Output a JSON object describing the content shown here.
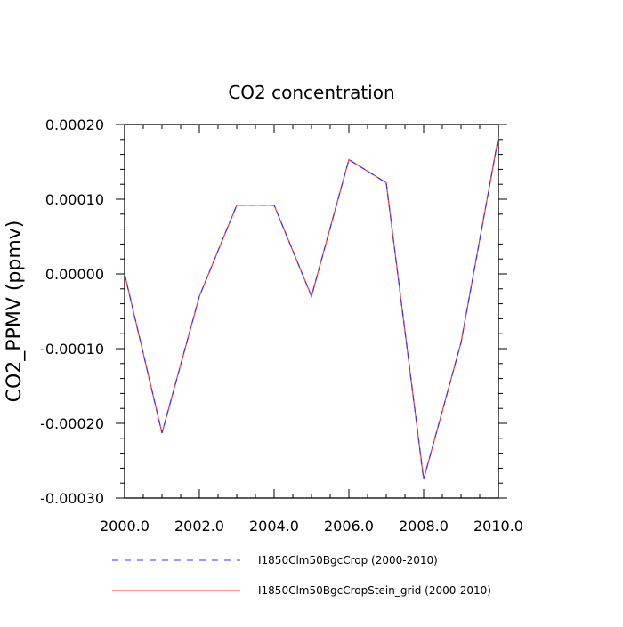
{
  "chart_data": {
    "type": "line",
    "title": "CO2 concentration",
    "xlabel": "",
    "ylabel": "CO2_PPMV  (ppmv)",
    "xlim": [
      2000,
      2010
    ],
    "ylim": [
      -0.0003,
      0.0002
    ],
    "x": [
      2000,
      2001,
      2002,
      2003,
      2004,
      2005,
      2006,
      2007,
      2008,
      2009,
      2010
    ],
    "x_ticks": [
      2000,
      2002,
      2004,
      2006,
      2008,
      2010
    ],
    "x_tick_labels": [
      "2000.0",
      "2002.0",
      "2004.0",
      "2006.0",
      "2008.0",
      "2010.0"
    ],
    "y_ticks": [
      0.0002,
      0.0001,
      0.0,
      -0.0001,
      -0.0002,
      -0.0003
    ],
    "y_tick_labels": [
      "0.00020",
      "0.00010",
      "0.00000",
      "-0.00010",
      "-0.00020",
      "-0.00030"
    ],
    "grid": false,
    "legend_position": "bottom",
    "series": [
      {
        "name": "I1850Clm50BgcCrop (2000-2010)",
        "color": "#3333ff",
        "style": "dashed",
        "values": [
          0.0,
          -0.000213,
          -3e-05,
          9.2e-05,
          9.2e-05,
          -3e-05,
          0.000153,
          0.000122,
          -0.000275,
          -9.2e-05,
          0.000183
        ]
      },
      {
        "name": "I1850Clm50BgcCropStein_grid (2000-2010)",
        "color": "#ff3333",
        "style": "solid",
        "values": [
          0.0,
          -0.000213,
          -3e-05,
          9.2e-05,
          9.2e-05,
          -3e-05,
          0.000153,
          0.000122,
          -0.000275,
          -9.2e-05,
          0.000183
        ]
      }
    ]
  }
}
